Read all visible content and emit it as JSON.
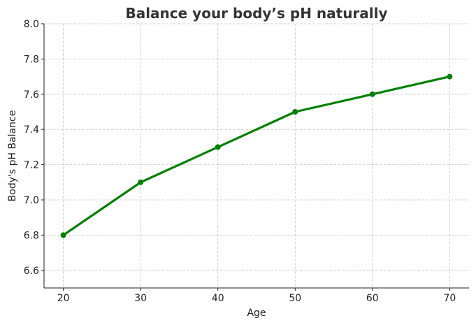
{
  "chart_data": {
    "type": "line",
    "title": "Balance your body’s pH naturally",
    "xlabel": "Age",
    "ylabel": "Body's pH Balance",
    "x": [
      20,
      30,
      40,
      50,
      60,
      70
    ],
    "series": [
      {
        "values": [
          6.8,
          7.1,
          7.3,
          7.5,
          7.6,
          7.7
        ],
        "color": "#008000",
        "marker": "circle"
      }
    ],
    "xticks": [
      "20",
      "30",
      "40",
      "50",
      "60",
      "70"
    ],
    "yticks": [
      "6.6",
      "6.8",
      "7.0",
      "7.2",
      "7.4",
      "7.6",
      "7.8",
      "8.0"
    ],
    "xlim": [
      17.5,
      72.5
    ],
    "ylim": [
      6.5,
      8.0
    ],
    "grid": true
  }
}
